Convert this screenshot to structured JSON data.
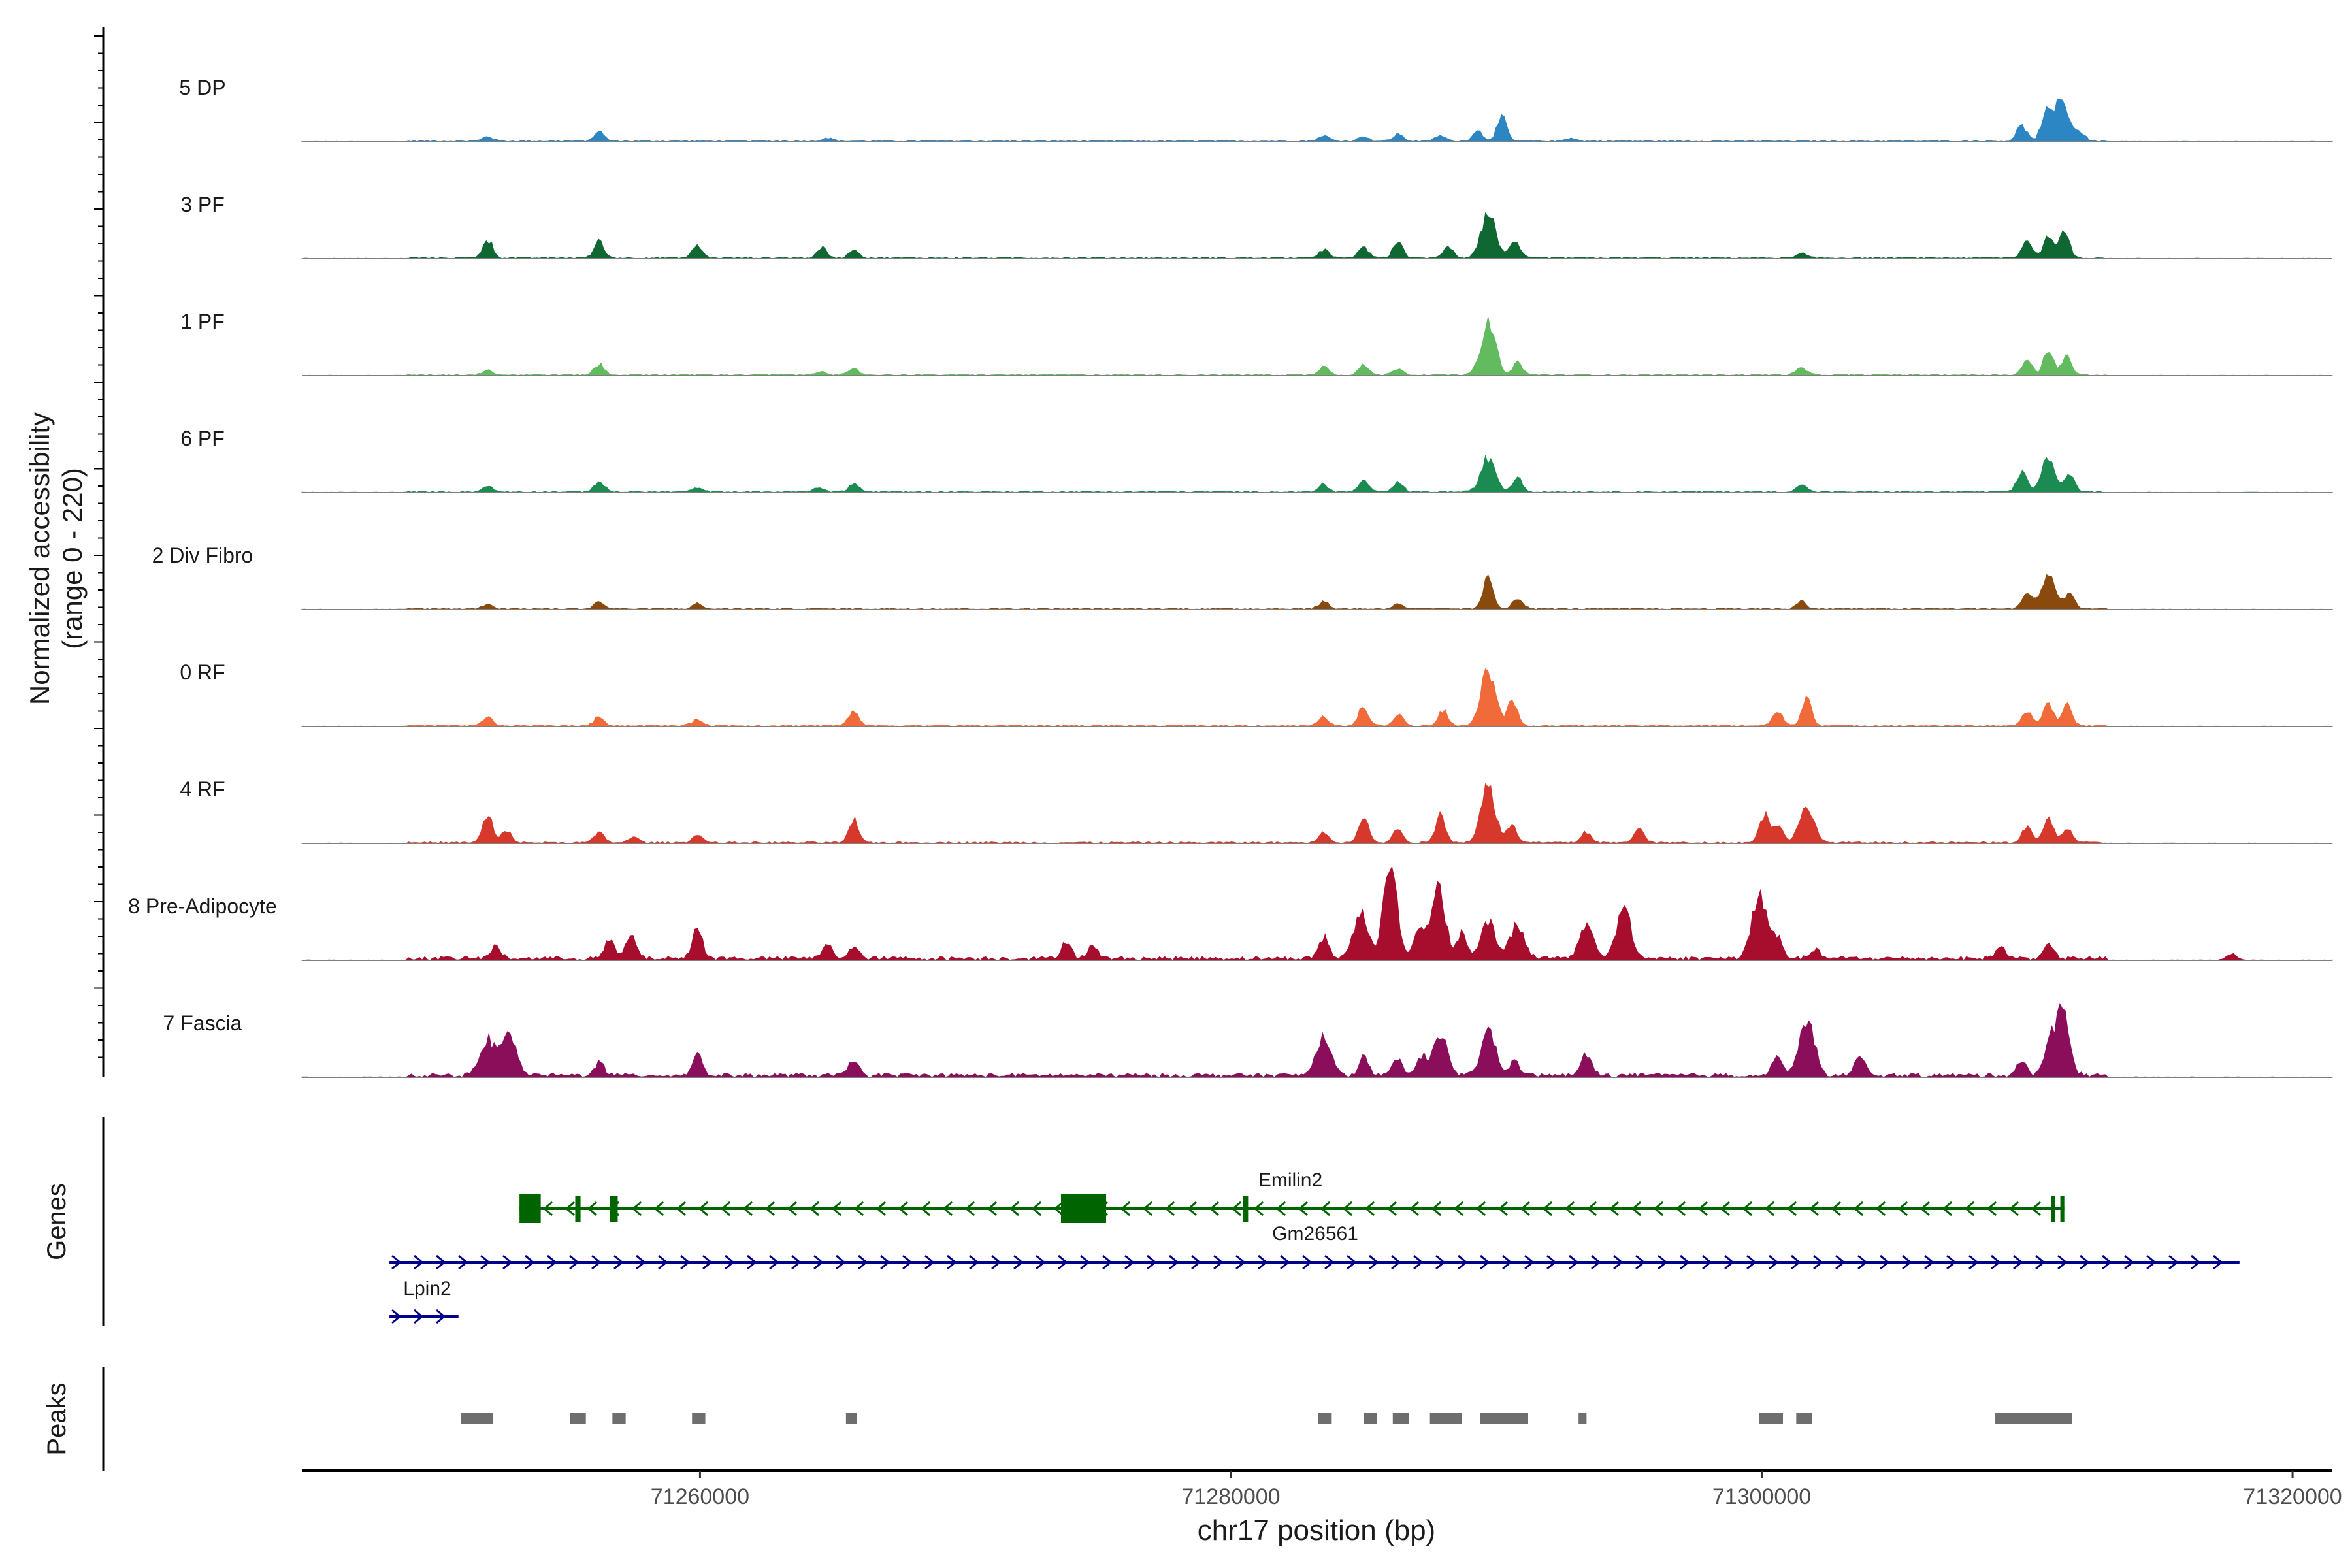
{
  "chart_data": {
    "type": "area",
    "title": "",
    "ylabel": "Normalized accessibility",
    "ylabel_range": "(range 0 - 220)",
    "xlabel": "chr17 position (bp)",
    "xlim": [
      71245000,
      71321500
    ],
    "ylim": [
      0,
      220
    ],
    "x_ticks": [
      71260000,
      71280000,
      71300000,
      71320000
    ],
    "x_tick_labels": [
      "71260000",
      "71280000",
      "71300000",
      "71320000"
    ],
    "tracks": [
      {
        "name": "5 DP",
        "color": "#2c86c4",
        "peaks": [
          [
            71252000,
            12
          ],
          [
            71256200,
            22
          ],
          [
            71264800,
            9
          ],
          [
            71283500,
            15
          ],
          [
            71285000,
            12
          ],
          [
            71286300,
            18
          ],
          [
            71287900,
            14
          ],
          [
            71289300,
            28
          ],
          [
            71290200,
            60
          ],
          [
            71292800,
            8
          ],
          [
            71309800,
            40
          ],
          [
            71310700,
            65
          ],
          [
            71311300,
            110
          ],
          [
            71312000,
            22
          ]
        ]
      },
      {
        "name": "3 PF",
        "color": "#0f6832",
        "peaks": [
          [
            71252000,
            48
          ],
          [
            71256200,
            42
          ],
          [
            71259900,
            30
          ],
          [
            71264600,
            26
          ],
          [
            71265800,
            20
          ],
          [
            71283500,
            22
          ],
          [
            71285000,
            28
          ],
          [
            71286300,
            40
          ],
          [
            71288200,
            28
          ],
          [
            71289700,
            112
          ],
          [
            71290700,
            48
          ],
          [
            71301500,
            12
          ],
          [
            71310000,
            45
          ],
          [
            71310800,
            62
          ],
          [
            71311400,
            78
          ]
        ]
      },
      {
        "name": "1 PF",
        "color": "#62bb5e",
        "peaks": [
          [
            71252000,
            14
          ],
          [
            71256200,
            28
          ],
          [
            71264600,
            10
          ],
          [
            71265800,
            14
          ],
          [
            71283500,
            22
          ],
          [
            71285000,
            28
          ],
          [
            71286300,
            18
          ],
          [
            71289700,
            135
          ],
          [
            71290800,
            30
          ],
          [
            71301500,
            20
          ],
          [
            71310000,
            38
          ],
          [
            71310800,
            65
          ],
          [
            71311500,
            48
          ]
        ]
      },
      {
        "name": "6 PF",
        "color": "#1c8b52",
        "peaks": [
          [
            71252000,
            14
          ],
          [
            71256200,
            28
          ],
          [
            71259900,
            10
          ],
          [
            71264500,
            12
          ],
          [
            71265800,
            22
          ],
          [
            71283500,
            20
          ],
          [
            71285000,
            30
          ],
          [
            71286300,
            24
          ],
          [
            71289700,
            85
          ],
          [
            71290800,
            38
          ],
          [
            71301500,
            20
          ],
          [
            71309800,
            52
          ],
          [
            71310800,
            82
          ],
          [
            71311600,
            42
          ]
        ]
      },
      {
        "name": "2 Div Fibro",
        "color": "#8a4a0e",
        "peaks": [
          [
            71252000,
            12
          ],
          [
            71256200,
            18
          ],
          [
            71259900,
            12
          ],
          [
            71283500,
            18
          ],
          [
            71286300,
            14
          ],
          [
            71289700,
            80
          ],
          [
            71290800,
            28
          ],
          [
            71301500,
            18
          ],
          [
            71310000,
            40
          ],
          [
            71310800,
            85
          ],
          [
            71311600,
            38
          ]
        ]
      },
      {
        "name": "0 RF",
        "color": "#f06a3a",
        "peaks": [
          [
            71252000,
            22
          ],
          [
            71256200,
            24
          ],
          [
            71259900,
            18
          ],
          [
            71265800,
            38
          ],
          [
            71283500,
            22
          ],
          [
            71285000,
            50
          ],
          [
            71286300,
            30
          ],
          [
            71288000,
            40
          ],
          [
            71289700,
            148
          ],
          [
            71290600,
            65
          ],
          [
            71300600,
            38
          ],
          [
            71301700,
            68
          ],
          [
            71310000,
            40
          ],
          [
            71310800,
            58
          ],
          [
            71311500,
            52
          ]
        ]
      },
      {
        "name": "4 RF",
        "color": "#d6392b",
        "peaks": [
          [
            71252000,
            72
          ],
          [
            71252700,
            30
          ],
          [
            71256200,
            28
          ],
          [
            71257500,
            14
          ],
          [
            71259900,
            22
          ],
          [
            71265800,
            58
          ],
          [
            71283500,
            28
          ],
          [
            71285000,
            65
          ],
          [
            71286300,
            35
          ],
          [
            71287900,
            70
          ],
          [
            71289700,
            145
          ],
          [
            71290600,
            45
          ],
          [
            71293400,
            28
          ],
          [
            71295400,
            38
          ],
          [
            71300100,
            75
          ],
          [
            71300600,
            48
          ],
          [
            71301700,
            90
          ],
          [
            71310000,
            42
          ],
          [
            71310800,
            68
          ],
          [
            71311500,
            38
          ]
        ]
      },
      {
        "name": "8 Pre-Adipocyte",
        "color": "#a70d2d",
        "peaks": [
          [
            71252300,
            32
          ],
          [
            71256600,
            45
          ],
          [
            71257400,
            65
          ],
          [
            71259900,
            78
          ],
          [
            71264800,
            40
          ],
          [
            71265800,
            30
          ],
          [
            71273800,
            45
          ],
          [
            71274800,
            30
          ],
          [
            71283500,
            55
          ],
          [
            71284900,
            120
          ],
          [
            71286000,
            222
          ],
          [
            71287100,
            80
          ],
          [
            71287800,
            185
          ],
          [
            71288700,
            68
          ],
          [
            71289700,
            95
          ],
          [
            71290800,
            85
          ],
          [
            71293400,
            85
          ],
          [
            71294800,
            130
          ],
          [
            71299900,
            160
          ],
          [
            71300600,
            55
          ],
          [
            71302000,
            25
          ],
          [
            71309000,
            30
          ],
          [
            71310800,
            40
          ],
          [
            71317700,
            18
          ]
        ]
      },
      {
        "name": "7 Fascia",
        "color": "#8a0e5a",
        "peaks": [
          [
            71252000,
            95
          ],
          [
            71252800,
            105
          ],
          [
            71256200,
            35
          ],
          [
            71259900,
            55
          ],
          [
            71265800,
            40
          ],
          [
            71283500,
            105
          ],
          [
            71285000,
            45
          ],
          [
            71286300,
            40
          ],
          [
            71287200,
            48
          ],
          [
            71287900,
            110
          ],
          [
            71289700,
            112
          ],
          [
            71290700,
            40
          ],
          [
            71293400,
            60
          ],
          [
            71300600,
            48
          ],
          [
            71301700,
            148
          ],
          [
            71303700,
            48
          ],
          [
            71309800,
            42
          ],
          [
            71310800,
            60
          ],
          [
            71311300,
            160
          ]
        ]
      }
    ],
    "genes": [
      {
        "name": "Emilin2",
        "strand": "-",
        "start": 71253200,
        "end": 71311400,
        "color": "#006400",
        "exons": [
          [
            71253200,
            71254000
          ],
          [
            71255300,
            71255500
          ],
          [
            71256600,
            71256900
          ],
          [
            71273600,
            71275300
          ],
          [
            71310900,
            71311050
          ],
          [
            71311250,
            71311400
          ]
        ]
      },
      {
        "name": "Gm26561",
        "strand": "-",
        "start": 71280450,
        "end": 71280650,
        "color": "#006400",
        "exons": [
          [
            71280450,
            71280650
          ]
        ]
      },
      {
        "name": "Lpin2",
        "strand": "+",
        "start": 71248300,
        "end": 71318000,
        "color": "#00008b",
        "exons": []
      },
      {
        "name": "",
        "strand": "+",
        "start": 71248300,
        "end": 71250900,
        "color": "#00008b",
        "exons": []
      }
    ],
    "peaks_regions": [
      [
        71251000,
        71252200
      ],
      [
        71255100,
        71255700
      ],
      [
        71256700,
        71257200
      ],
      [
        71259700,
        71260200
      ],
      [
        71265500,
        71265900
      ],
      [
        71283300,
        71283800
      ],
      [
        71285000,
        71285500
      ],
      [
        71286100,
        71286700
      ],
      [
        71287500,
        71288700
      ],
      [
        71289400,
        71291200
      ],
      [
        71293100,
        71293400
      ],
      [
        71299900,
        71300800
      ],
      [
        71301300,
        71301900
      ],
      [
        71308800,
        71311700
      ]
    ],
    "panel_labels": {
      "genes": "Genes",
      "peaks": "Peaks"
    }
  }
}
